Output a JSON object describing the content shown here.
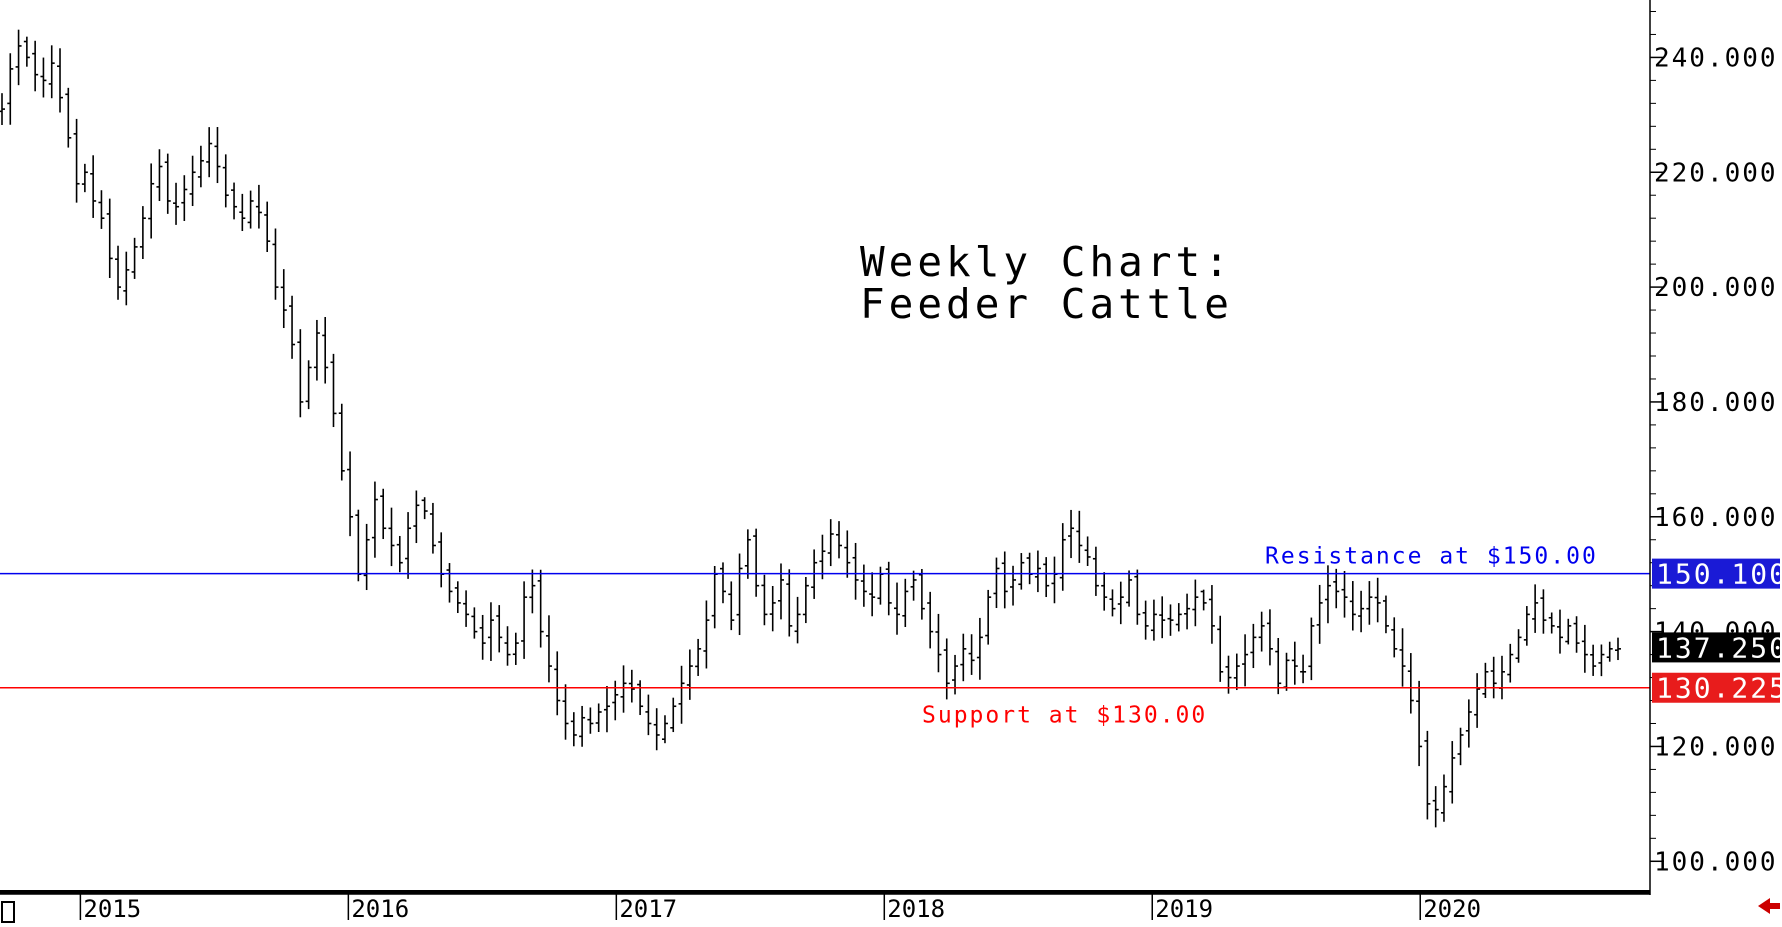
{
  "chart_data": {
    "type": "ohlc",
    "title_lines": [
      "Weekly Chart:",
      "Feeder Cattle"
    ],
    "x_ticks": [
      "2015",
      "2016",
      "2017",
      "2018",
      "2019",
      "2020"
    ],
    "y_ticks": [
      "240.000",
      "220.000",
      "200.000",
      "180.000",
      "160.000",
      "140.000",
      "120.000",
      "100.000"
    ],
    "ylim": [
      95,
      250
    ],
    "start_year": 2014.7,
    "end_year": 2020.85,
    "horizontal_lines": [
      {
        "value": 150.1,
        "color": "#0000ee",
        "annotation": "Resistance at $150.00",
        "badge": "150.100"
      },
      {
        "value": 130.225,
        "color": "#ff0000",
        "annotation": "Support at $130.00",
        "badge": "130.225"
      }
    ],
    "last_price": {
      "value": 137.25,
      "badge": "137.250"
    },
    "weekly_closes": [
      231,
      238,
      242,
      240,
      237,
      236,
      239,
      233,
      226,
      218,
      220,
      215,
      212,
      205,
      200,
      203,
      207,
      212,
      218,
      221,
      215,
      214,
      217,
      220,
      222,
      225,
      221,
      216,
      214,
      212,
      215,
      213,
      208,
      200,
      196,
      190,
      180,
      186,
      192,
      186,
      178,
      168,
      160,
      150,
      156,
      163,
      158,
      155,
      152,
      158,
      162,
      161,
      155,
      150,
      147,
      145,
      143,
      140,
      138,
      142,
      139,
      136,
      138,
      146,
      148,
      140,
      134,
      128,
      124,
      122,
      125,
      124,
      126,
      127,
      129,
      131,
      130,
      127,
      124,
      122,
      124,
      127,
      131,
      134,
      137,
      142,
      150,
      147,
      142,
      151,
      156,
      148,
      143,
      145,
      149,
      141,
      143,
      148,
      152,
      154,
      157,
      155,
      152,
      149,
      147,
      146,
      150,
      145,
      143,
      147,
      149,
      144,
      140,
      136,
      131,
      134,
      137,
      135,
      139,
      146,
      151,
      147,
      149,
      152,
      150,
      151,
      148,
      150,
      156,
      158,
      155,
      153,
      148,
      146,
      144,
      146,
      149,
      143,
      141,
      143,
      142,
      142,
      143,
      144,
      146,
      145,
      141,
      133,
      132,
      134,
      136,
      139,
      141,
      137,
      131,
      135,
      134,
      133,
      141,
      145,
      148,
      147,
      146,
      143,
      144,
      146,
      145,
      141,
      137,
      134,
      128,
      120,
      110,
      109,
      113,
      118,
      122,
      126,
      130,
      133,
      131,
      133,
      136,
      139,
      143,
      145,
      142,
      141,
      139,
      141,
      138,
      136,
      134,
      136,
      137,
      137
    ]
  }
}
